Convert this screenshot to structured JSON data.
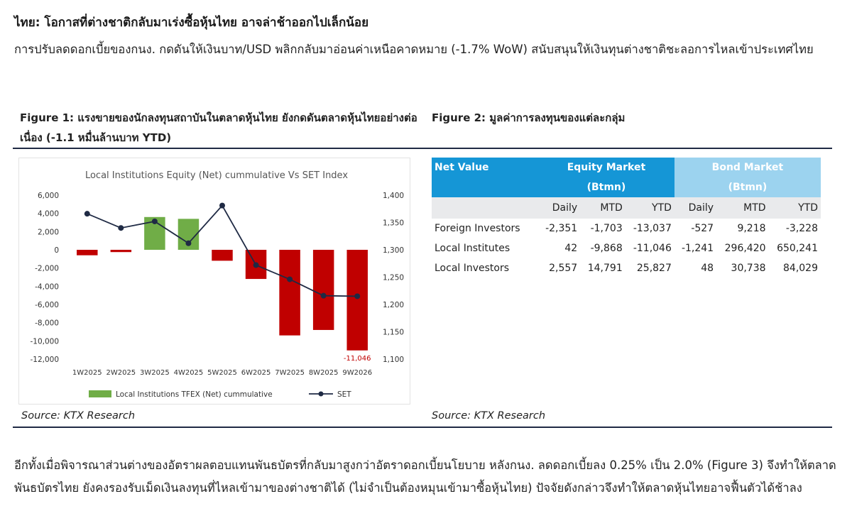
{
  "headline": "ไทย: โอกาสที่ต่างชาติกลับมาเร่งซื้อหุ้นไทย อาจล่าช้าออกไปเล็กน้อย",
  "intro": "การปรับลดดอกเบี้ยของกนง. กดดันให้เงินบาท/USD พลิกกลับมาอ่อนค่าเหนือคาดหมาย (-1.7% WoW) สนับสนุนให้เงินทุนต่างชาติชะลอการไหลเข้าประเทศไทย",
  "figure1": {
    "title": "Figure 1: แรงขายของนักลงทุนสถาบันในตลาดหุ้นไทย ยังกดดันตลาดหุ้นไทยอย่างต่อเนื่อง (-1.1 หมื่นล้านบาท YTD)",
    "source": "Source: KTX Research"
  },
  "figure2": {
    "title": "Figure 2: มูลค่าการลงทุนของแต่ละกลุ่ม",
    "source": "Source: KTX Research",
    "table": {
      "net_value_label": "Net Value",
      "equity_label": "Equity Market",
      "bond_label": "Bond Market",
      "unit_label": "(Btmn)",
      "sub_headers": [
        "Daily",
        "MTD",
        "YTD",
        "Daily",
        "MTD",
        "YTD"
      ],
      "rows": [
        {
          "name": "Foreign Investors",
          "values": [
            "-2,351",
            "-1,703",
            "-13,037",
            "-527",
            "9,218",
            "-3,228"
          ]
        },
        {
          "name": "Local Institutes",
          "values": [
            "42",
            "-9,868",
            "-11,046",
            "-1,241",
            "296,420",
            "650,241"
          ]
        },
        {
          "name": "Local Investors",
          "values": [
            "2,557",
            "14,791",
            "25,827",
            "48",
            "30,738",
            "84,029"
          ]
        }
      ]
    }
  },
  "chart_data": {
    "type": "bar",
    "title": "Local Institutions Equity (Net) cummulative Vs SET Index",
    "categories": [
      "1W2025",
      "2W2025",
      "3W2025",
      "4W2025",
      "5W2025",
      "6W2025",
      "7W2025",
      "8W2025",
      "9W2026"
    ],
    "series": [
      {
        "name": "Local Institutions TFEX (Net) cummulative",
        "type": "bar",
        "axis": "left",
        "values": [
          -600,
          -250,
          3600,
          3400,
          -1200,
          -3200,
          -9400,
          -8800,
          -11046
        ]
      },
      {
        "name": "SET",
        "type": "line",
        "axis": "right",
        "values": [
          1366,
          1340,
          1352,
          1312,
          1381,
          1272,
          1246,
          1216,
          1215
        ]
      }
    ],
    "bar_colors": {
      "positive": "#70ad47",
      "negative": "#c00000"
    },
    "line_color": "#1f2a44",
    "y_left": {
      "ylim": [
        -12000,
        6000
      ],
      "ticks": [
        "6,000",
        "4,000",
        "2,000",
        "0",
        "-2,000",
        "-4,000",
        "-6,000",
        "-8,000",
        "-10,000",
        "-12,000"
      ]
    },
    "y_right": {
      "ylim": [
        1100,
        1400
      ],
      "ticks": [
        "1,400",
        "1,350",
        "1,300",
        "1,250",
        "1,200",
        "1,150",
        "1,100"
      ]
    },
    "last_label": "-11,046",
    "legend_position": "bottom",
    "grid": false
  },
  "para2": "อีกทั้งเมื่อพิจารณาส่วนต่างของอัตราผลตอบแทนพันธบัตรที่กลับมาสูงกว่าอัตราดอกเบี้ยนโยบาย หลังกนง. ลดดอกเบี้ยลง 0.25% เป็น 2.0% (Figure 3) จึงทำให้ตลาดพันธบัตรไทย ยังคงรองรับเม็ดเงินลงทุนที่ไหลเข้ามาของต่างชาติได้ (ไม่จำเป็นต้องหมุนเข้ามาซื้อหุ้นไทย) ปัจจัยดังกล่าวจึงทำให้ตลาดหุ้นไทยอาจฟื้นตัวได้ช้าลง"
}
